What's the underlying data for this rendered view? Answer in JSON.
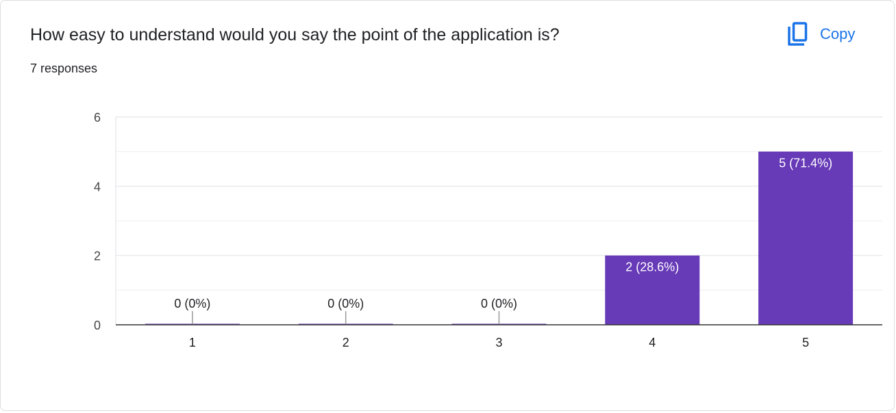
{
  "header": {
    "question": "How easy to understand would you say the point of the application is?",
    "responses": "7 responses",
    "copy_label": "Copy",
    "copy_icon": "copy-icon"
  },
  "colors": {
    "bar": "#673ab7",
    "accent": "#1a73e8",
    "grid": "#e8eaed",
    "axis": "#333333",
    "text": "#202124"
  },
  "chart_data": {
    "type": "bar",
    "title": "",
    "xlabel": "",
    "ylabel": "",
    "categories": [
      "1",
      "2",
      "3",
      "4",
      "5"
    ],
    "values": [
      0,
      0,
      0,
      2,
      5
    ],
    "labels": [
      "0 (0%)",
      "0 (0%)",
      "0 (0%)",
      "2 (28.6%)",
      "5 (71.4%)"
    ],
    "ylim": [
      0,
      6
    ],
    "yticks": [
      0,
      2,
      4,
      6
    ],
    "grid": true,
    "legend": "none"
  }
}
